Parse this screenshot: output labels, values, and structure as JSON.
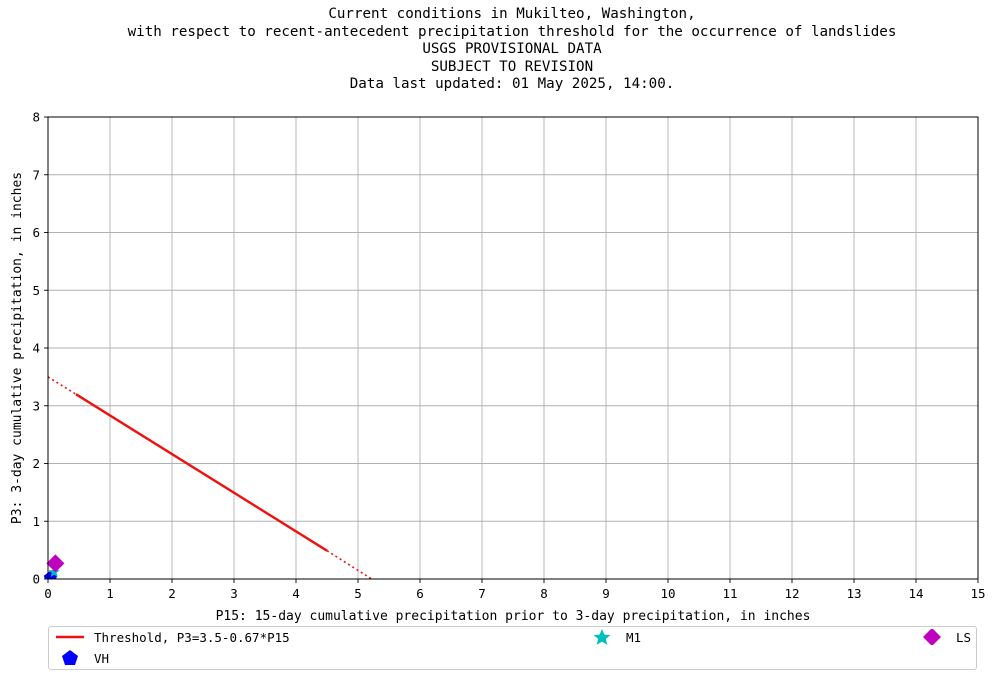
{
  "chart_data": {
    "type": "line",
    "title_lines": [
      "Current conditions in Mukilteo, Washington,",
      "with respect to recent-antecedent precipitation threshold for the occurrence of landslides",
      "USGS PROVISIONAL DATA",
      "SUBJECT TO REVISION",
      "Data last updated: 01 May 2025, 14:00."
    ],
    "xlabel": "P15: 15-day cumulative precipitation prior to 3-day precipitation, in inches",
    "ylabel": "P3: 3-day cumulative precipitation, in inches",
    "xlim": [
      0,
      15
    ],
    "ylim": [
      0,
      8
    ],
    "x_ticks": [
      "0",
      "1",
      "2",
      "3",
      "4",
      "5",
      "6",
      "7",
      "8",
      "9",
      "10",
      "11",
      "12",
      "13",
      "14",
      "15"
    ],
    "y_ticks": [
      "0",
      "1",
      "2",
      "3",
      "4",
      "5",
      "6",
      "7",
      "8"
    ],
    "grid": true,
    "legend_position": "bottom",
    "series": [
      {
        "name": "Threshold, P3=3.5-0.67*P15",
        "kind": "line",
        "color": "#ee1111",
        "solid": [
          [
            0.45,
            3.2
          ],
          [
            4.5,
            0.49
          ]
        ],
        "dotted": [
          [
            [
              0.0,
              3.5
            ],
            [
              0.45,
              3.2
            ]
          ],
          [
            [
              4.5,
              0.49
            ],
            [
              5.22,
              0.0
            ]
          ]
        ]
      },
      {
        "name": "VH",
        "kind": "marker",
        "marker": "pentagon",
        "color": "#0000ff",
        "points": [
          [
            0.04,
            0.02
          ]
        ]
      },
      {
        "name": "M1",
        "kind": "marker",
        "marker": "star",
        "color": "#00bfbf",
        "points": [
          [
            0.1,
            0.12
          ]
        ]
      },
      {
        "name": "LS",
        "kind": "marker",
        "marker": "diamond",
        "color": "#bf00bf",
        "points": [
          [
            0.12,
            0.27
          ]
        ]
      }
    ]
  }
}
